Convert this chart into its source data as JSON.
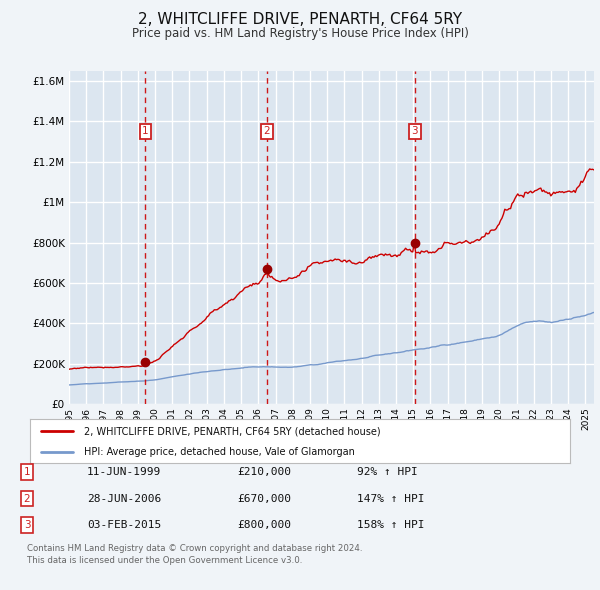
{
  "title": "2, WHITCLIFFE DRIVE, PENARTH, CF64 5RY",
  "subtitle": "Price paid vs. HM Land Registry's House Price Index (HPI)",
  "title_fontsize": 11,
  "subtitle_fontsize": 8.5,
  "background_color": "#f0f4f8",
  "plot_bg_color": "#dce6f0",
  "grid_color": "#ffffff",
  "ylim": [
    0,
    1650000
  ],
  "xlim_start": 1995.0,
  "xlim_end": 2025.5,
  "legend_entry1": "2, WHITCLIFFE DRIVE, PENARTH, CF64 5RY (detached house)",
  "legend_entry2": "HPI: Average price, detached house, Vale of Glamorgan",
  "sale_labels": [
    "1",
    "2",
    "3"
  ],
  "sale_dates": [
    1999.44,
    2006.49,
    2015.09
  ],
  "sale_prices": [
    210000,
    670000,
    800000
  ],
  "sale_table": [
    [
      "1",
      "11-JUN-1999",
      "£210,000",
      "92% ↑ HPI"
    ],
    [
      "2",
      "28-JUN-2006",
      "£670,000",
      "147% ↑ HPI"
    ],
    [
      "3",
      "03-FEB-2015",
      "£800,000",
      "158% ↑ HPI"
    ]
  ],
  "footer_line1": "Contains HM Land Registry data © Crown copyright and database right 2024.",
  "footer_line2": "This data is licensed under the Open Government Licence v3.0.",
  "red_line_color": "#cc0000",
  "blue_line_color": "#7799cc",
  "sale_dot_color": "#990000",
  "dashed_line_color": "#cc0000",
  "label_box_color": "#cc2222"
}
